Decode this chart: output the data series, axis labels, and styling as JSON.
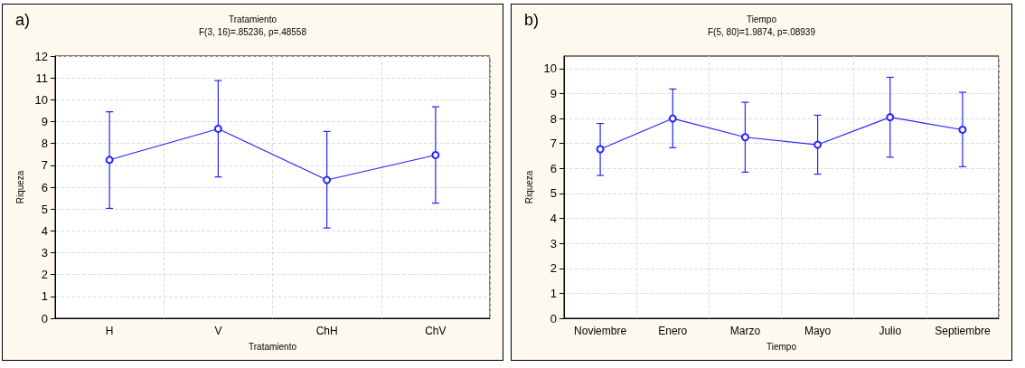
{
  "chart_data": [
    {
      "type": "line",
      "title": "Tratamiento",
      "subtitle": "F(3, 16)=.85236, p=.48558",
      "xlabel": "Tratamiento",
      "ylabel": "Riqueza",
      "annotations": [
        "a)"
      ],
      "categories": [
        "H",
        "V",
        "ChH",
        "ChV"
      ],
      "series": [
        {
          "color": "#2424ff",
          "values": [
            7.25,
            8.67,
            6.33,
            7.47
          ],
          "errors": [
            [
              5.03,
              9.45
            ],
            [
              6.47,
              10.88
            ],
            [
              4.13,
              8.55
            ],
            [
              5.27,
              9.68
            ]
          ]
        }
      ],
      "ylim": [
        0,
        12
      ],
      "yticks": [
        0,
        1,
        2,
        3,
        4,
        5,
        6,
        7,
        8,
        9,
        10,
        11,
        12
      ],
      "grid": true,
      "marker": "circle",
      "line_style": "solid"
    },
    {
      "type": "line",
      "title": "Tiempo",
      "subtitle": "F(5, 80)=1.9874, p=.08939",
      "xlabel": "Tiempo",
      "ylabel": "Riqueza",
      "annotations": [
        "b)"
      ],
      "categories": [
        "Noviembre",
        "Enero",
        "Marzo",
        "Mayo",
        "Julio",
        "Septiembre"
      ],
      "series": [
        {
          "color": "#2424ff",
          "values": [
            6.77,
            8.0,
            7.25,
            6.95,
            8.05,
            7.55
          ],
          "errors": [
            [
              5.72,
              7.8
            ],
            [
              6.83,
              9.18
            ],
            [
              5.85,
              8.65
            ],
            [
              5.77,
              8.13
            ],
            [
              6.45,
              9.65
            ],
            [
              6.07,
              9.05
            ]
          ]
        }
      ],
      "ylim": [
        0,
        10.5
      ],
      "yticks": [
        0,
        1,
        2,
        3,
        4,
        5,
        6,
        7,
        8,
        9,
        10
      ],
      "grid": true,
      "marker": "circle",
      "line_style": "solid"
    }
  ]
}
